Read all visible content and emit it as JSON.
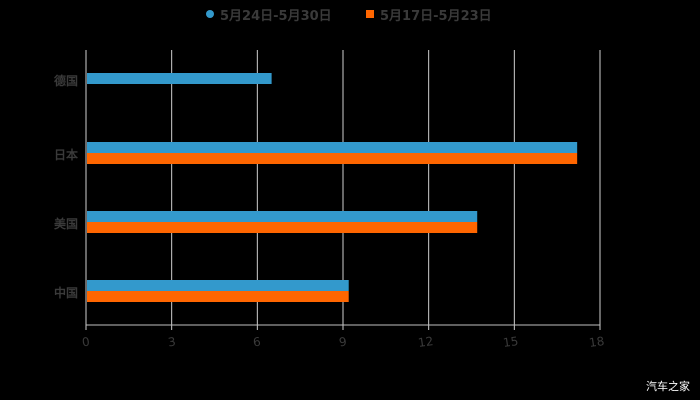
{
  "chart_data": {
    "type": "bar",
    "orientation": "horizontal",
    "title": "",
    "xlabel": "",
    "ylabel": "",
    "categories": [
      "德国",
      "日本",
      "美国",
      "中国"
    ],
    "series": [
      {
        "name": "5月24日-5月30日",
        "color": "#3399cc",
        "values": [
          6.5,
          17.2,
          13.7,
          9.2
        ]
      },
      {
        "name": "5月17日-5月23日",
        "color": "#ff6600",
        "values": [
          null,
          17.2,
          13.7,
          9.2
        ]
      }
    ],
    "xlim": [
      0,
      18
    ],
    "xticks": [
      0,
      3,
      6,
      9,
      12,
      15,
      18
    ],
    "grid": true,
    "legend_position": "top"
  },
  "legend": {
    "items": [
      {
        "label": "5月24日-5月30日",
        "color": "#3399cc",
        "shape": "circle"
      },
      {
        "label": "5月17日-5月23日",
        "color": "#ff6600",
        "shape": "square"
      }
    ]
  },
  "watermark": "汽车之家"
}
